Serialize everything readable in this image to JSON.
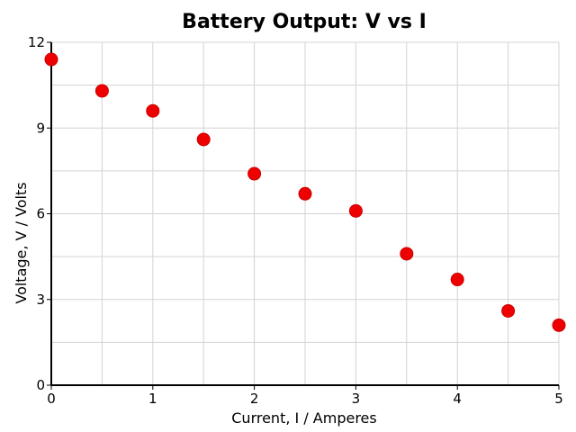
{
  "chart_data": {
    "type": "scatter",
    "title": "Battery Output: V vs I",
    "xlabel": "Current, I / Amperes",
    "ylabel": "Voltage, V / Volts",
    "xlim": [
      0,
      5
    ],
    "ylim": [
      0,
      12
    ],
    "x_ticks": [
      0,
      1,
      2,
      3,
      4,
      5
    ],
    "y_ticks": [
      0,
      3,
      6,
      9,
      12
    ],
    "x_minor_step": 0.5,
    "y_minor_step": 1.5,
    "grid": true,
    "point_color": "#ee0000",
    "points": [
      {
        "x": 0.0,
        "y": 11.4
      },
      {
        "x": 0.5,
        "y": 10.3
      },
      {
        "x": 1.0,
        "y": 9.6
      },
      {
        "x": 1.5,
        "y": 8.6
      },
      {
        "x": 2.0,
        "y": 7.4
      },
      {
        "x": 2.5,
        "y": 6.7
      },
      {
        "x": 3.0,
        "y": 6.1
      },
      {
        "x": 3.5,
        "y": 4.6
      },
      {
        "x": 4.0,
        "y": 3.7
      },
      {
        "x": 4.5,
        "y": 2.6
      },
      {
        "x": 5.0,
        "y": 2.1
      }
    ]
  }
}
